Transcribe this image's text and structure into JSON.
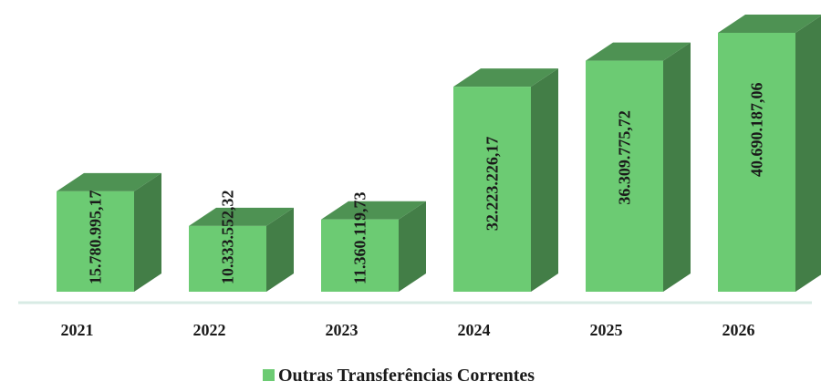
{
  "chart_data": {
    "type": "bar3d",
    "categories": [
      "2021",
      "2022",
      "2023",
      "2024",
      "2025",
      "2026"
    ],
    "series": [
      {
        "name": "Outras Transferências Correntes",
        "color": "#6ccb73",
        "values": [
          15780995.17,
          10333552.32,
          11360119.73,
          32223226.17,
          36309775.72,
          40690187.06
        ],
        "value_labels": [
          "15.780.995,17",
          "10.333.552,32",
          "11.360.119,73",
          "32.223.226,17",
          "36.309.775,72",
          "40.690.187,06"
        ]
      }
    ],
    "legend": "bottom"
  }
}
